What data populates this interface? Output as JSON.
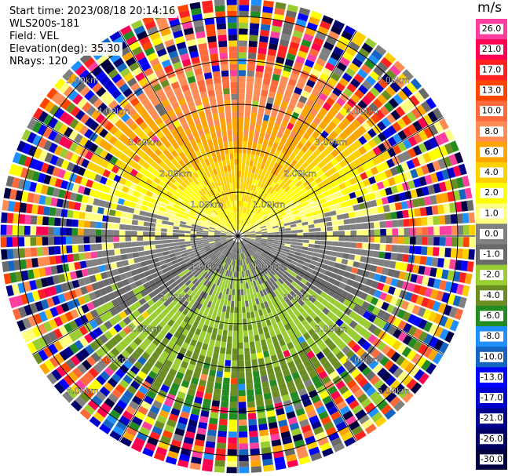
{
  "header": {
    "start_time": "Start time: 2023/08/18 20:14:16",
    "instrument": "WLS200s-181",
    "field": "Field: VEL",
    "elevation": "Elevation(deg): 35.30",
    "nrays": "NRays: 120"
  },
  "colorbar": {
    "unit": "m/s",
    "labels": [
      "26.0",
      "21.0",
      "17.0",
      "13.0",
      "10.0",
      "8.0",
      "6.0",
      "4.0",
      "2.0",
      "1.0",
      "0.0",
      "-1.0",
      "-2.0",
      "-4.0",
      "-6.0",
      "-8.0",
      "-10.0",
      "-13.0",
      "-17.0",
      "-21.0",
      "-26.0",
      "-30.0"
    ],
    "colors": [
      "#ff3fa0",
      "#ff0050",
      "#ff2020",
      "#ff4500",
      "#ff6a3d",
      "#ff8c55",
      "#ffa500",
      "#ffd000",
      "#ffff00",
      "#ffff80",
      "#808080",
      "#6a6a6a",
      "#9acd32",
      "#6b8e23",
      "#228b22",
      "#1e90ff",
      "#1565c0",
      "#0000ff",
      "#0000cd",
      "#00008b",
      "#000066",
      "#000040"
    ]
  },
  "chart_data": {
    "type": "ppi",
    "field": "VEL",
    "nrays": 120,
    "range_rings_km": [
      1.0,
      2.0,
      3.0,
      4.0,
      5.0
    ],
    "ring_labels": [
      "1.00km",
      "2.00km",
      "3.00km",
      "4.00km",
      "5.00km"
    ],
    "max_range_km": 5.4,
    "spoke_angles_deg": [
      0,
      30,
      60,
      90,
      120,
      150
    ],
    "vmin": -30.0,
    "vmax": 26.0,
    "pattern": {
      "near_range_toward_north": "positive (yellow/orange/red, ~2 to 13 m/s)",
      "near_range_toward_south": "negative (green/blue, ~-4 to -10 m/s)",
      "east_west_axis": "near zero (gray)",
      "beyond_3_5km": "noise (random colors)"
    }
  }
}
